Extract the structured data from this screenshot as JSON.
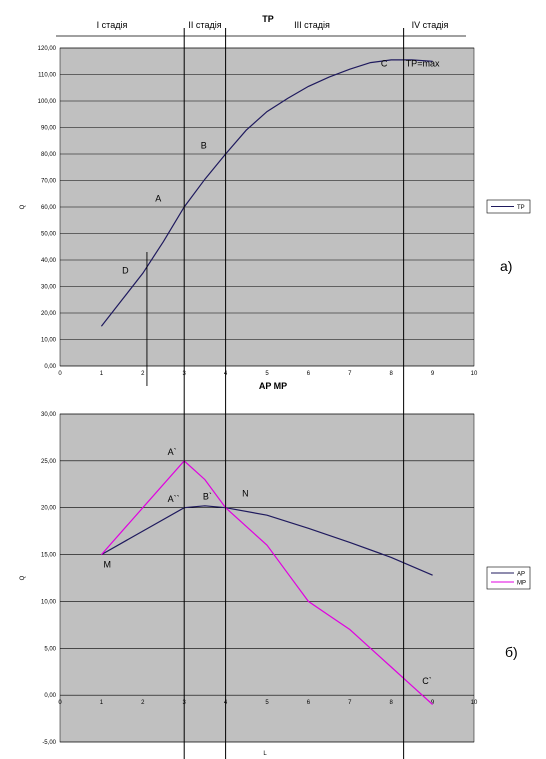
{
  "chart_data": [
    {
      "type": "line",
      "title": "TP",
      "xlabel": "",
      "ylabel": "Q",
      "xlim": [
        0,
        10
      ],
      "ylim": [
        0,
        120
      ],
      "x_ticks": [
        "0",
        "1",
        "2",
        "3",
        "4",
        "5",
        "6",
        "7",
        "8",
        "9",
        "10"
      ],
      "y_ticks": [
        "0,00",
        "10,00",
        "20,00",
        "30,00",
        "40,00",
        "50,00",
        "60,00",
        "70,00",
        "80,00",
        "90,00",
        "100,00",
        "110,00",
        "120,00"
      ],
      "grid": true,
      "legend_position": "right",
      "series": [
        {
          "name": "TP",
          "color": "#1f1a5e",
          "points": [
            [
              1,
              15
            ],
            [
              1.5,
              25
            ],
            [
              2,
              35
            ],
            [
              2.5,
              47
            ],
            [
              3,
              60
            ],
            [
              3.5,
              70.5
            ],
            [
              4,
              80
            ],
            [
              4.5,
              89
            ],
            [
              5,
              96
            ],
            [
              5.5,
              101
            ],
            [
              6,
              105.5
            ],
            [
              6.5,
              109
            ],
            [
              7,
              112
            ],
            [
              7.5,
              114.5
            ],
            [
              8,
              115.5
            ],
            [
              8.5,
              115.5
            ],
            [
              9,
              115
            ]
          ]
        }
      ],
      "annotations": [
        {
          "label": "A",
          "x": 2.3,
          "y": 62
        },
        {
          "label": "B",
          "x": 3.4,
          "y": 82
        },
        {
          "label": "C",
          "x": 7.75,
          "y": 113
        },
        {
          "label": "D",
          "x": 1.5,
          "y": 35
        },
        {
          "label": "TP=max",
          "x": 8.35,
          "y": 113
        }
      ],
      "marker_line": {
        "x": 2.1,
        "y_from": 0,
        "y_to": 43
      },
      "panel_label": "а)"
    },
    {
      "type": "line",
      "title": "AP MP",
      "xlabel": "L",
      "ylabel": "Q",
      "xlim": [
        0,
        10
      ],
      "ylim": [
        -5,
        30
      ],
      "x_ticks": [
        "0",
        "1",
        "2",
        "3",
        "4",
        "5",
        "6",
        "7",
        "8",
        "9",
        "10"
      ],
      "y_ticks": [
        "-5,00",
        "0,00",
        "5,00",
        "10,00",
        "15,00",
        "20,00",
        "25,00",
        "30,00"
      ],
      "grid": true,
      "legend_position": "right",
      "series": [
        {
          "name": "AP",
          "color": "#1f1a5e",
          "points": [
            [
              1,
              15
            ],
            [
              2,
              17.5
            ],
            [
              3,
              20
            ],
            [
              3.5,
              20.2
            ],
            [
              4,
              20
            ],
            [
              5,
              19.2
            ],
            [
              6,
              17.8
            ],
            [
              7,
              16.3
            ],
            [
              8,
              14.7
            ],
            [
              9,
              12.8
            ]
          ]
        },
        {
          "name": "MP",
          "color": "#e000e0",
          "points": [
            [
              1,
              15
            ],
            [
              2,
              20
            ],
            [
              3,
              25
            ],
            [
              3.5,
              23
            ],
            [
              4,
              20
            ],
            [
              5,
              16
            ],
            [
              5.5,
              13
            ],
            [
              6,
              10
            ],
            [
              6.5,
              8.5
            ],
            [
              7,
              7
            ],
            [
              7.5,
              5
            ],
            [
              8,
              3
            ],
            [
              8.5,
              1
            ],
            [
              9,
              -1
            ]
          ]
        }
      ],
      "annotations": [
        {
          "label": "A`",
          "x": 2.6,
          "y": 25.6
        },
        {
          "label": "A``",
          "x": 2.6,
          "y": 20.6
        },
        {
          "label": "B`",
          "x": 3.45,
          "y": 20.9
        },
        {
          "label": "N",
          "x": 4.4,
          "y": 21.2
        },
        {
          "label": "M",
          "x": 1.05,
          "y": 13.6
        },
        {
          "label": "C`",
          "x": 8.75,
          "y": 1.2
        }
      ],
      "panel_label": "б)"
    }
  ],
  "stages": [
    "I стадія",
    "II стадія",
    "III стадія",
    "IV стадія"
  ],
  "stage_boundaries_x": [
    3,
    4,
    8.3
  ]
}
